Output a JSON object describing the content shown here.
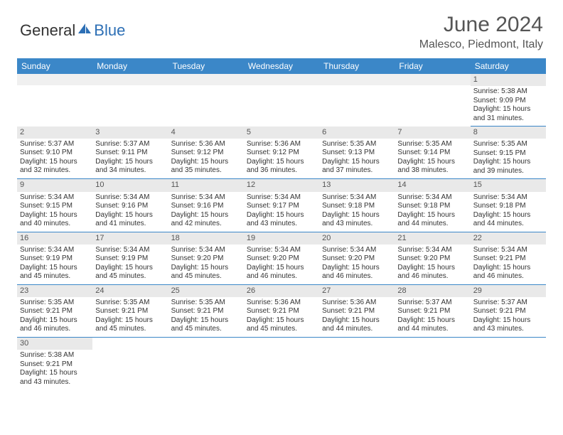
{
  "brand": {
    "part1": "General",
    "part2": "Blue"
  },
  "title": "June 2024",
  "location": "Malesco, Piedmont, Italy",
  "colors": {
    "header_bg": "#3b87c8",
    "header_text": "#ffffff",
    "date_strip_bg": "#e9e9e9",
    "body_text": "#333333",
    "border": "#3b87c8",
    "brand_blue": "#2d6fb5",
    "title_color": "#555555"
  },
  "day_headers": [
    "Sunday",
    "Monday",
    "Tuesday",
    "Wednesday",
    "Thursday",
    "Friday",
    "Saturday"
  ],
  "weeks": [
    [
      null,
      null,
      null,
      null,
      null,
      null,
      {
        "d": "1",
        "sr": "5:38 AM",
        "ss": "9:09 PM",
        "dl": "15 hours and 31 minutes."
      }
    ],
    [
      {
        "d": "2",
        "sr": "5:37 AM",
        "ss": "9:10 PM",
        "dl": "15 hours and 32 minutes."
      },
      {
        "d": "3",
        "sr": "5:37 AM",
        "ss": "9:11 PM",
        "dl": "15 hours and 34 minutes."
      },
      {
        "d": "4",
        "sr": "5:36 AM",
        "ss": "9:12 PM",
        "dl": "15 hours and 35 minutes."
      },
      {
        "d": "5",
        "sr": "5:36 AM",
        "ss": "9:12 PM",
        "dl": "15 hours and 36 minutes."
      },
      {
        "d": "6",
        "sr": "5:35 AM",
        "ss": "9:13 PM",
        "dl": "15 hours and 37 minutes."
      },
      {
        "d": "7",
        "sr": "5:35 AM",
        "ss": "9:14 PM",
        "dl": "15 hours and 38 minutes."
      },
      {
        "d": "8",
        "sr": "5:35 AM",
        "ss": "9:15 PM",
        "dl": "15 hours and 39 minutes."
      }
    ],
    [
      {
        "d": "9",
        "sr": "5:34 AM",
        "ss": "9:15 PM",
        "dl": "15 hours and 40 minutes."
      },
      {
        "d": "10",
        "sr": "5:34 AM",
        "ss": "9:16 PM",
        "dl": "15 hours and 41 minutes."
      },
      {
        "d": "11",
        "sr": "5:34 AM",
        "ss": "9:16 PM",
        "dl": "15 hours and 42 minutes."
      },
      {
        "d": "12",
        "sr": "5:34 AM",
        "ss": "9:17 PM",
        "dl": "15 hours and 43 minutes."
      },
      {
        "d": "13",
        "sr": "5:34 AM",
        "ss": "9:18 PM",
        "dl": "15 hours and 43 minutes."
      },
      {
        "d": "14",
        "sr": "5:34 AM",
        "ss": "9:18 PM",
        "dl": "15 hours and 44 minutes."
      },
      {
        "d": "15",
        "sr": "5:34 AM",
        "ss": "9:18 PM",
        "dl": "15 hours and 44 minutes."
      }
    ],
    [
      {
        "d": "16",
        "sr": "5:34 AM",
        "ss": "9:19 PM",
        "dl": "15 hours and 45 minutes."
      },
      {
        "d": "17",
        "sr": "5:34 AM",
        "ss": "9:19 PM",
        "dl": "15 hours and 45 minutes."
      },
      {
        "d": "18",
        "sr": "5:34 AM",
        "ss": "9:20 PM",
        "dl": "15 hours and 45 minutes."
      },
      {
        "d": "19",
        "sr": "5:34 AM",
        "ss": "9:20 PM",
        "dl": "15 hours and 46 minutes."
      },
      {
        "d": "20",
        "sr": "5:34 AM",
        "ss": "9:20 PM",
        "dl": "15 hours and 46 minutes."
      },
      {
        "d": "21",
        "sr": "5:34 AM",
        "ss": "9:20 PM",
        "dl": "15 hours and 46 minutes."
      },
      {
        "d": "22",
        "sr": "5:34 AM",
        "ss": "9:21 PM",
        "dl": "15 hours and 46 minutes."
      }
    ],
    [
      {
        "d": "23",
        "sr": "5:35 AM",
        "ss": "9:21 PM",
        "dl": "15 hours and 46 minutes."
      },
      {
        "d": "24",
        "sr": "5:35 AM",
        "ss": "9:21 PM",
        "dl": "15 hours and 45 minutes."
      },
      {
        "d": "25",
        "sr": "5:35 AM",
        "ss": "9:21 PM",
        "dl": "15 hours and 45 minutes."
      },
      {
        "d": "26",
        "sr": "5:36 AM",
        "ss": "9:21 PM",
        "dl": "15 hours and 45 minutes."
      },
      {
        "d": "27",
        "sr": "5:36 AM",
        "ss": "9:21 PM",
        "dl": "15 hours and 44 minutes."
      },
      {
        "d": "28",
        "sr": "5:37 AM",
        "ss": "9:21 PM",
        "dl": "15 hours and 44 minutes."
      },
      {
        "d": "29",
        "sr": "5:37 AM",
        "ss": "9:21 PM",
        "dl": "15 hours and 43 minutes."
      }
    ],
    [
      {
        "d": "30",
        "sr": "5:38 AM",
        "ss": "9:21 PM",
        "dl": "15 hours and 43 minutes."
      },
      null,
      null,
      null,
      null,
      null,
      null
    ]
  ],
  "labels": {
    "sunrise": "Sunrise:",
    "sunset": "Sunset:",
    "daylight": "Daylight:"
  }
}
